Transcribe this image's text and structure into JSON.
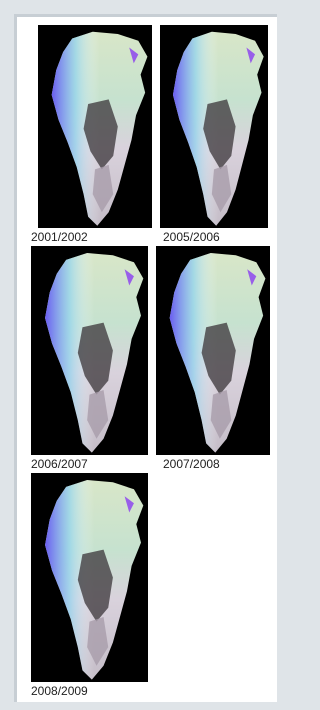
{
  "panels": [
    {
      "label": "2001/2002"
    },
    {
      "label": "2005/2006"
    },
    {
      "label": "2006/2007"
    },
    {
      "label": "2007/2008"
    },
    {
      "label": "2008/2009"
    }
  ]
}
